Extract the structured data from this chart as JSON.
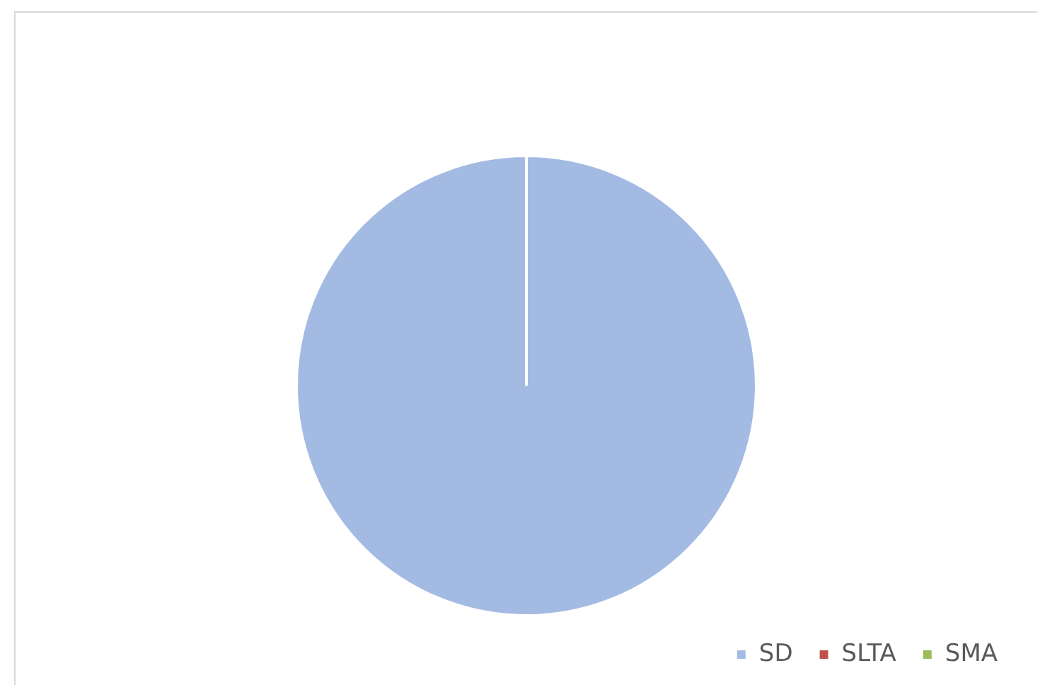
{
  "chart_data": {
    "type": "pie",
    "categories": [
      "SD",
      "SLTA",
      "SMA"
    ],
    "values": [
      100,
      0,
      0
    ],
    "colors": [
      "#a3bbe3",
      "#c0504d",
      "#9bbb59"
    ],
    "legend": "bottom right"
  }
}
